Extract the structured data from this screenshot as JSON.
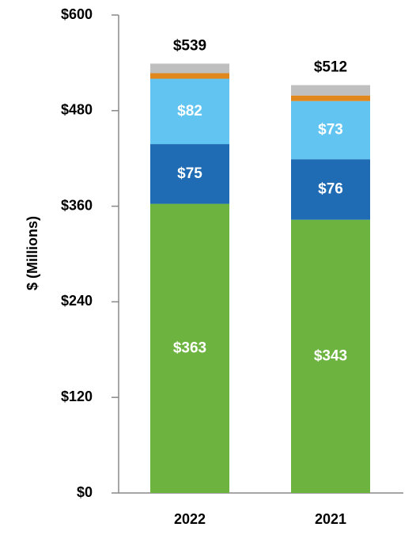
{
  "chart_data": {
    "type": "stacked-bar",
    "ylabel": "$ (Millions)",
    "categories": [
      "2022",
      "2021"
    ],
    "series": [
      {
        "color": "#6db33f",
        "values": [
          363,
          343
        ],
        "value_labels": [
          "$363",
          "$343"
        ]
      },
      {
        "color": "#1f6cb4",
        "values": [
          75,
          76
        ],
        "value_labels": [
          "$75",
          "$76"
        ]
      },
      {
        "color": "#62c4f1",
        "values": [
          82,
          73
        ],
        "value_labels": [
          "$82",
          "$73"
        ]
      },
      {
        "color": "#e0871d",
        "values": [
          7,
          7
        ]
      },
      {
        "color": "#bfbfbf",
        "values": [
          12,
          13
        ]
      }
    ],
    "totals": [
      539,
      512
    ],
    "total_labels": [
      "$539",
      "$512"
    ],
    "ylim": [
      0,
      600
    ],
    "yticks": [
      {
        "value": 0,
        "label": "$0"
      },
      {
        "value": 120,
        "label": "$120"
      },
      {
        "value": 240,
        "label": "$240"
      },
      {
        "value": 360,
        "label": "$360"
      },
      {
        "value": 480,
        "label": "$480"
      },
      {
        "value": 600,
        "label": "$600"
      }
    ]
  }
}
